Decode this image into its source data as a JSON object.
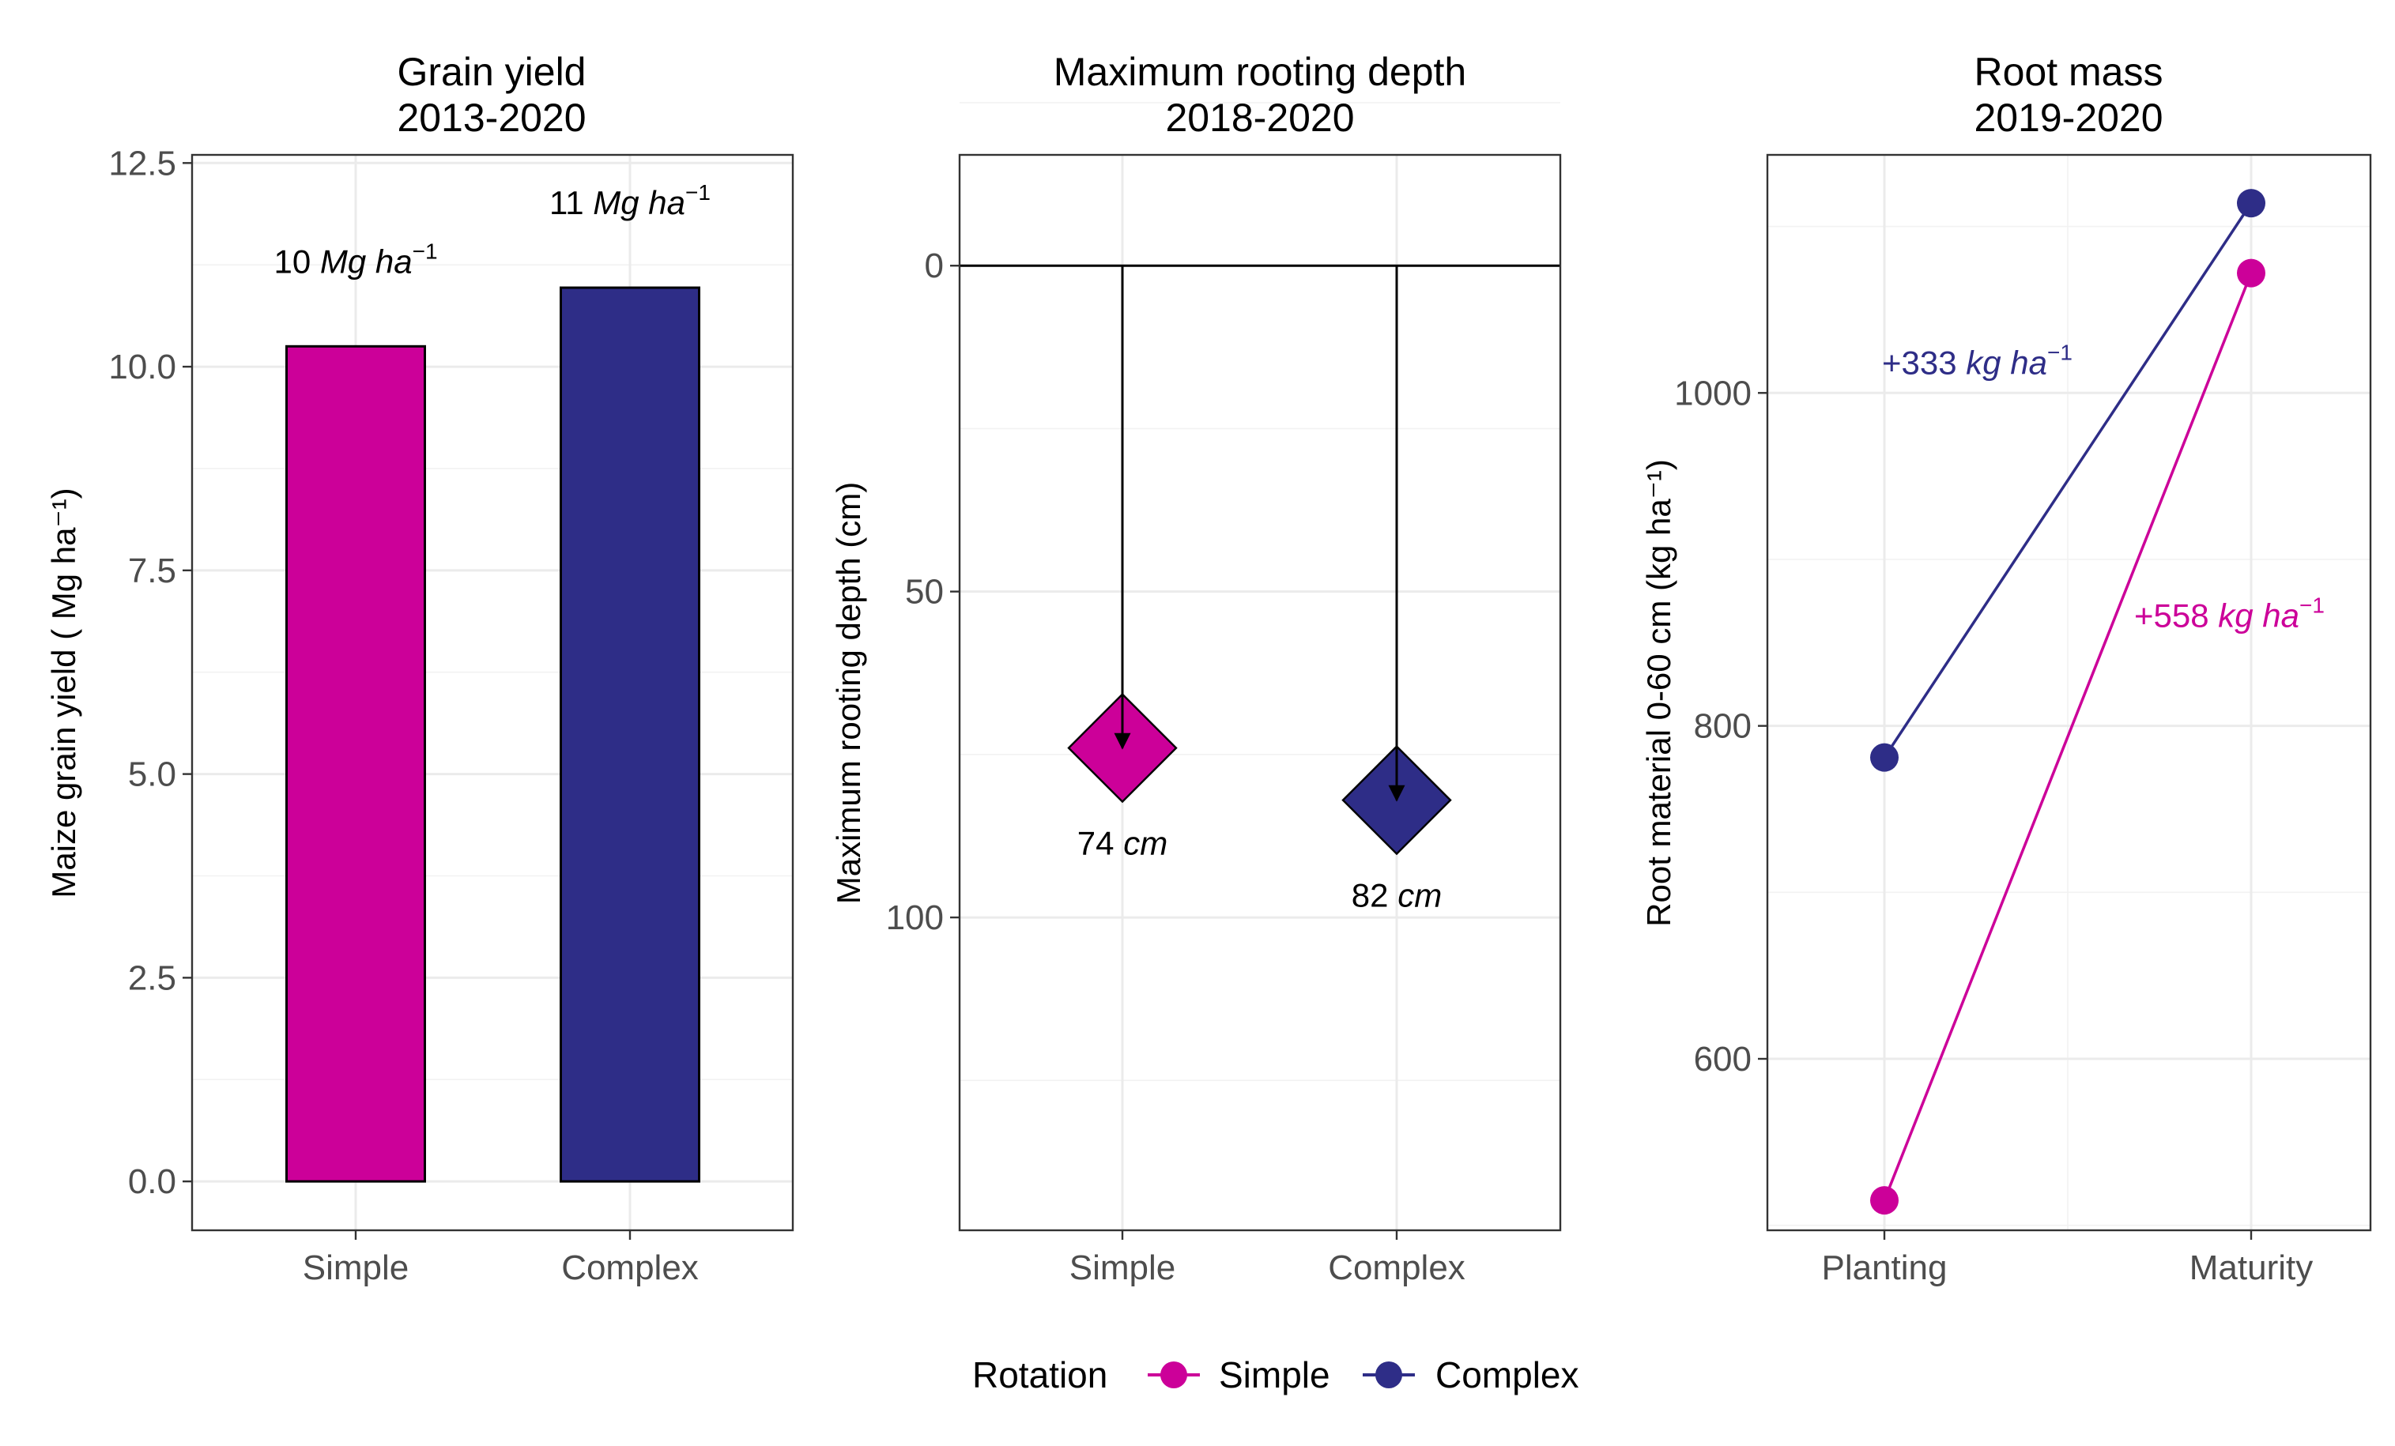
{
  "chart_data": [
    {
      "type": "bar",
      "title": "Grain yield",
      "subtitle": "2013-2020",
      "ylabel": "Maize grain yield ( Mg ha⁻¹)",
      "xlabel": "",
      "categories": [
        "Simple",
        "Complex"
      ],
      "values": [
        10.25,
        10.97
      ],
      "colors": [
        "#CC0099",
        "#2E2D87"
      ],
      "ylim": [
        -0.6,
        12.6
      ],
      "yticks": [
        "0.0",
        "2.5",
        "5.0",
        "7.5",
        "10.0",
        "12.5"
      ],
      "grid": true,
      "data_labels": [
        {
          "number": "10",
          "unit": "Mg ha",
          "sup": "−1",
          "color": "#000000"
        },
        {
          "number": "11",
          "unit": "Mg ha",
          "sup": "−1",
          "color": "#000000"
        }
      ]
    },
    {
      "type": "scatter",
      "title": "Maximum rooting depth",
      "subtitle": "2018-2020",
      "ylabel": "Maximum rooting depth (cm)",
      "xlabel": "",
      "y_reversed": true,
      "categories": [
        "Simple",
        "Complex"
      ],
      "values": [
        74,
        82
      ],
      "colors": [
        "#CC0099",
        "#2E2D87"
      ],
      "marker": "diamond",
      "reference_line": 0,
      "ylim": [
        -17,
        148
      ],
      "yticks": [
        "0",
        "50",
        "100"
      ],
      "grid": true,
      "data_labels": [
        {
          "number": "74",
          "unit": "cm",
          "color": "#000000"
        },
        {
          "number": "82",
          "unit": "cm",
          "color": "#000000"
        }
      ]
    },
    {
      "type": "line",
      "title": "Root mass",
      "subtitle": "2019-2020",
      "ylabel": "Root material 0-60 cm (kg  ha⁻¹)",
      "xlabel": "",
      "categories": [
        "Planting",
        "Maturity"
      ],
      "series": [
        {
          "name": "Simple",
          "color": "#CC0099",
          "values": [
            515,
            1072
          ]
        },
        {
          "name": "Complex",
          "color": "#2E2D87",
          "values": [
            781,
            1114
          ]
        }
      ],
      "ylim": [
        497,
        1143
      ],
      "yticks": [
        "600",
        "800",
        "1000"
      ],
      "grid": true,
      "data_labels": [
        {
          "prefix": "+",
          "number": "333",
          "unit": "kg ha",
          "sup": "−1",
          "color": "#2E2D87"
        },
        {
          "prefix": "+",
          "number": "558",
          "unit": "kg ha",
          "sup": "−1",
          "color": "#CC0099"
        }
      ]
    }
  ],
  "legend": {
    "title": "Rotation",
    "position": "bottom",
    "items": [
      {
        "label": "Simple",
        "color": "#CC0099"
      },
      {
        "label": "Complex",
        "color": "#2E2D87"
      }
    ]
  }
}
